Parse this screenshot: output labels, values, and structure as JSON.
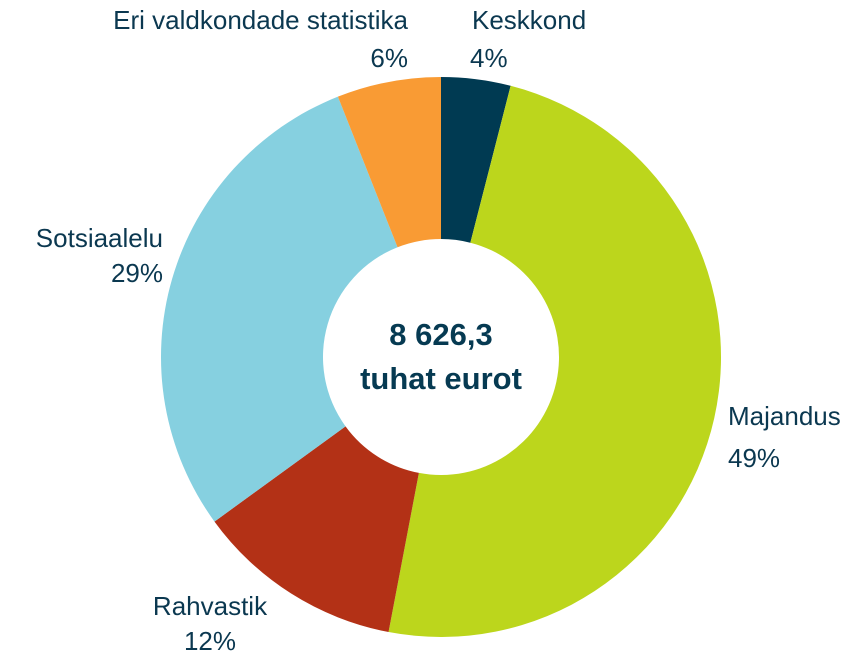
{
  "chart_data": {
    "type": "donut",
    "categories": [
      "Keskkond",
      "Majandus",
      "Rahvastik",
      "Sotsiaalelu",
      "Eri valdkondade statistika"
    ],
    "values": [
      4,
      49,
      12,
      29,
      6
    ],
    "value_labels": [
      "4%",
      "49%",
      "12%",
      "29%",
      "6%"
    ],
    "colors": [
      "#003a52",
      "#bcd61c",
      "#b33116",
      "#86d0e0",
      "#f99b34"
    ],
    "center_label": [
      "8 626,3",
      "tuhat eurot"
    ]
  }
}
